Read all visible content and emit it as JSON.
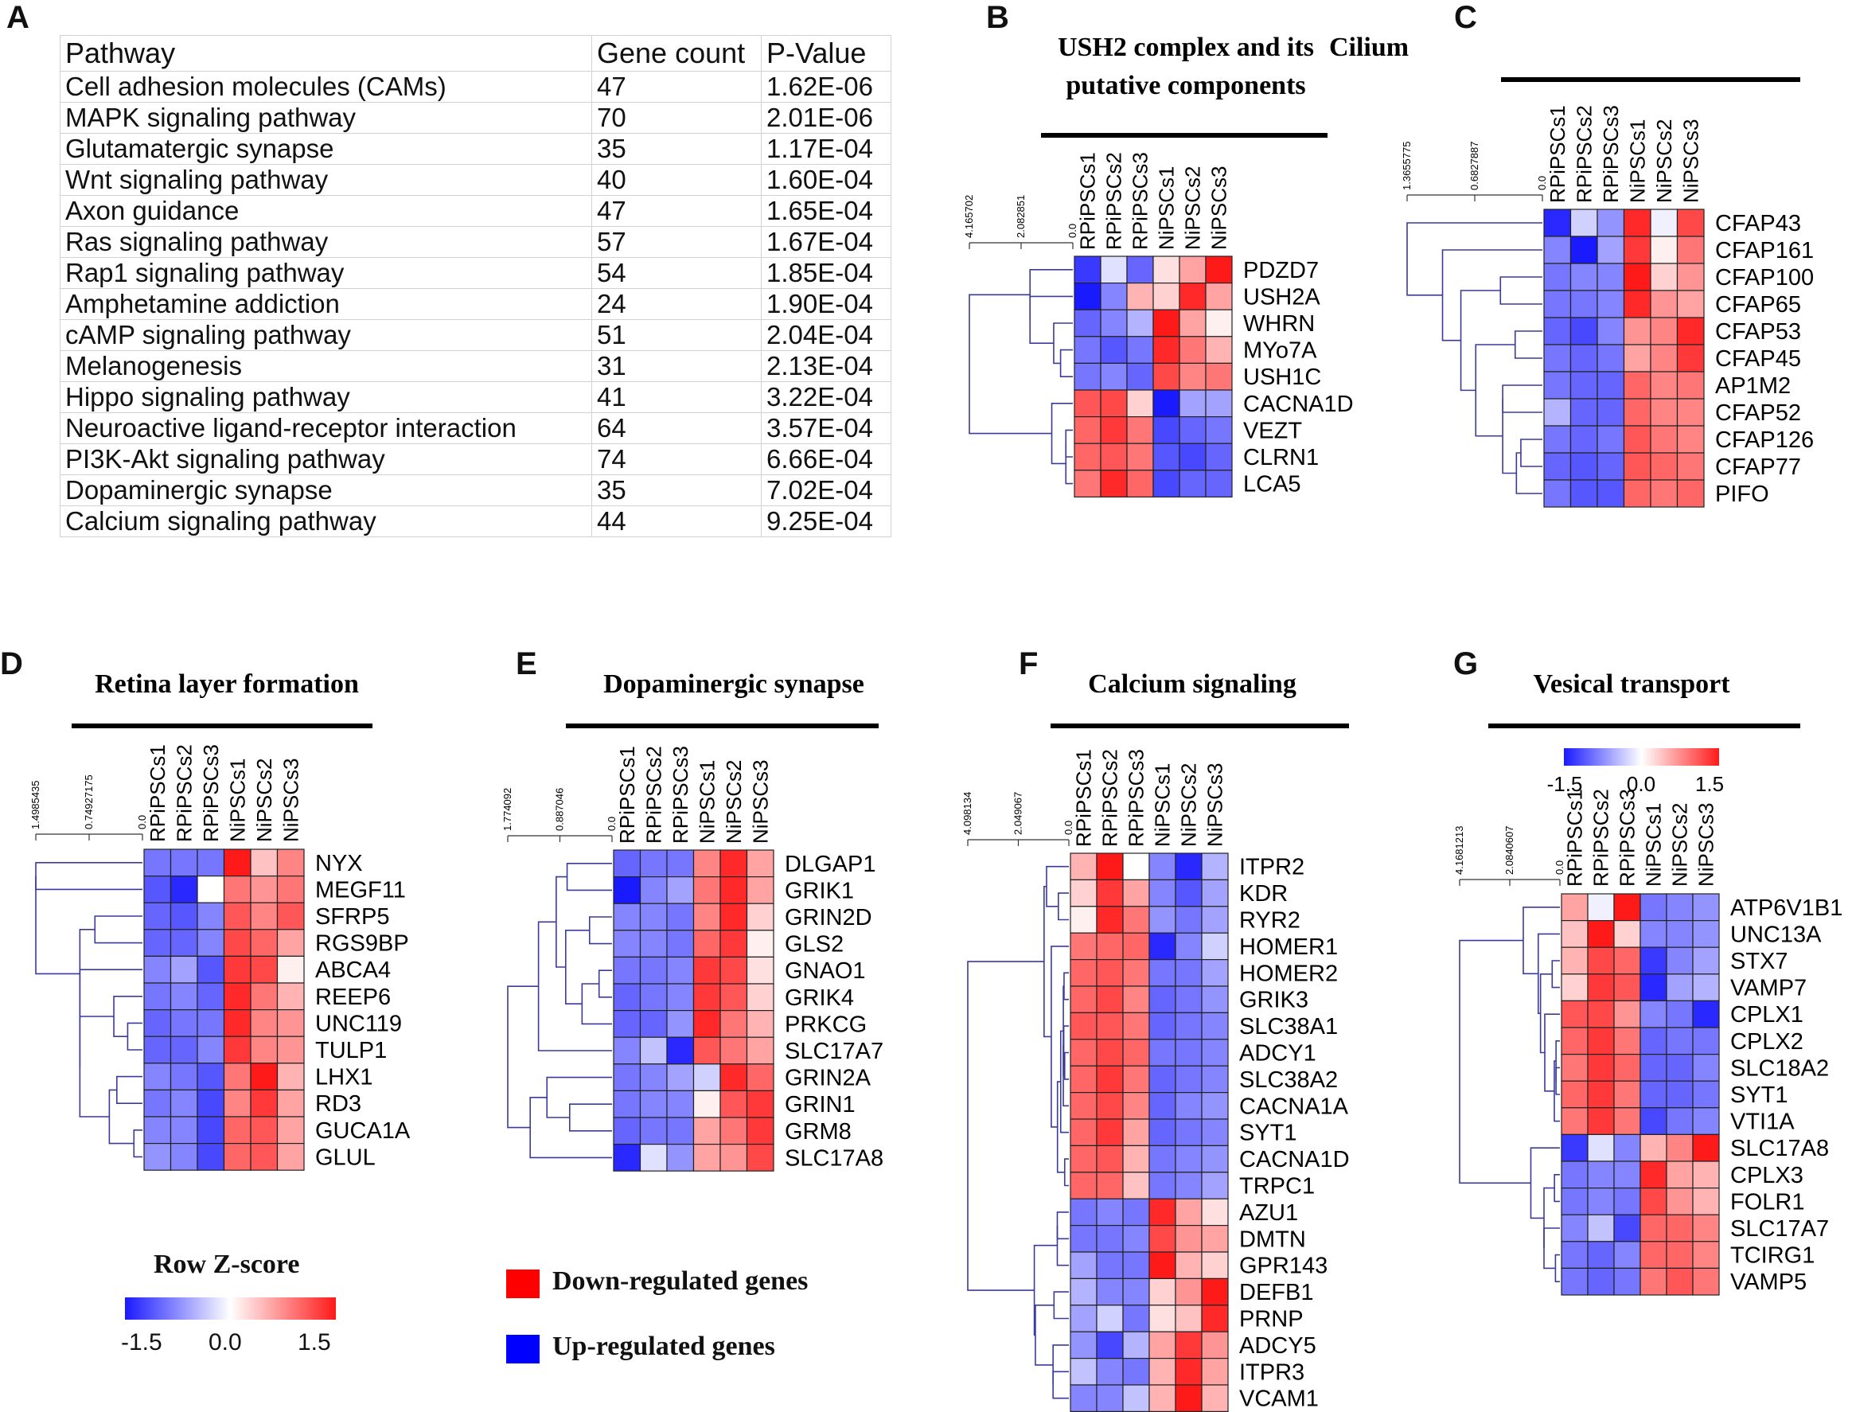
{
  "panel_letters": {
    "A": "A",
    "B": "B",
    "C": "C",
    "D": "D",
    "E": "E",
    "F": "F",
    "G": "G"
  },
  "table": {
    "headers": [
      "Pathway",
      "Gene count",
      "P-Value"
    ],
    "rows": [
      [
        "Cell adhesion molecules (CAMs)",
        "47",
        "1.62E-06"
      ],
      [
        "MAPK signaling pathway",
        "70",
        "2.01E-06"
      ],
      [
        "Glutamatergic synapse",
        "35",
        "1.17E-04"
      ],
      [
        "Wnt signaling pathway",
        "40",
        "1.60E-04"
      ],
      [
        "Axon guidance",
        "47",
        "1.65E-04"
      ],
      [
        "Ras signaling pathway",
        "57",
        "1.67E-04"
      ],
      [
        "Rap1 signaling pathway",
        "54",
        "1.85E-04"
      ],
      [
        "Amphetamine addiction",
        "24",
        "1.90E-04"
      ],
      [
        "cAMP signaling pathway",
        "51",
        "2.04E-04"
      ],
      [
        "Melanogenesis",
        "31",
        "2.13E-04"
      ],
      [
        "Hippo signaling pathway",
        "41",
        "3.22E-04"
      ],
      [
        "Neuroactive ligand-receptor interaction",
        "64",
        "3.57E-04"
      ],
      [
        "PI3K-Akt signaling pathway",
        "74",
        "6.66E-04"
      ],
      [
        "Dopaminergic synapse",
        "35",
        "7.02E-04"
      ],
      [
        "Calcium signaling pathway",
        "44",
        "9.25E-04"
      ]
    ]
  },
  "legend": {
    "zscore_title": "Row Z-score",
    "zscore_ticks": [
      "-1.5",
      "0.0",
      "1.5"
    ],
    "down_label": "Down-regulated genes",
    "up_label": "Up-regulated genes",
    "colors": {
      "low": "#1a1aff",
      "mid": "#ffffff",
      "high": "#ff1a1a",
      "down": "#ff0000",
      "up": "#0000ff"
    }
  },
  "chart_data": [
    {
      "type": "heatmap",
      "panel": "B",
      "title": [
        "USH2 complex and its",
        "putative components"
      ],
      "columns": [
        "RPiPSCs1",
        "RPiPSCs2",
        "RPiPSCs3",
        "NiPSCs1",
        "NiPSCs2",
        "NiPSCs3"
      ],
      "dendro_ticks": [
        "4.165702",
        "2.082851",
        "0.0"
      ],
      "rows": [
        "PDZD7",
        "USH2A",
        "WHRN",
        "MYo7A",
        "USH1C",
        "CACNA1D",
        "VEZT",
        "CLRN1",
        "LCA5"
      ],
      "values": [
        [
          -1.3,
          -0.2,
          -1.0,
          0.2,
          0.6,
          1.5
        ],
        [
          -1.5,
          -0.8,
          0.5,
          0.3,
          1.4,
          0.6
        ],
        [
          -1.0,
          -0.8,
          -0.5,
          1.5,
          0.6,
          0.1
        ],
        [
          -0.9,
          -1.1,
          -0.9,
          1.4,
          0.9,
          0.5
        ],
        [
          -0.9,
          -0.8,
          -1.0,
          1.2,
          0.8,
          0.9
        ],
        [
          1.1,
          1.2,
          0.3,
          -1.5,
          -0.6,
          -0.6
        ],
        [
          1.0,
          1.3,
          0.9,
          -1.2,
          -1.0,
          -0.9
        ],
        [
          1.0,
          1.1,
          0.9,
          -1.1,
          -1.2,
          -1.0
        ],
        [
          0.9,
          1.4,
          1.0,
          -1.2,
          -1.0,
          -1.0
        ]
      ],
      "zlim": [
        -1.5,
        1.5
      ]
    },
    {
      "type": "heatmap",
      "panel": "C",
      "title": [
        "Cilium"
      ],
      "columns": [
        "RPiPSCs1",
        "RPiPSCs2",
        "RPiPSCs3",
        "NiPSCs1",
        "NiPSCs2",
        "NiPSCs3"
      ],
      "dendro_ticks": [
        "1.3655775",
        "0.6827887",
        "0.0"
      ],
      "rows": [
        "CFAP43",
        "CFAP161",
        "CFAP100",
        "CFAP65",
        "CFAP53",
        "CFAP45",
        "AP1M2",
        "CFAP52",
        "CFAP126",
        "CFAP77",
        "PIFO"
      ],
      "values": [
        [
          -1.4,
          -0.3,
          -0.7,
          1.4,
          -0.1,
          1.2
        ],
        [
          -0.8,
          -1.5,
          -0.6,
          1.3,
          0.1,
          0.9
        ],
        [
          -0.9,
          -0.8,
          -0.8,
          1.5,
          0.3,
          0.7
        ],
        [
          -0.9,
          -0.9,
          -0.8,
          1.4,
          0.7,
          0.6
        ],
        [
          -1.0,
          -1.2,
          -0.8,
          0.7,
          0.8,
          1.4
        ],
        [
          -0.9,
          -1.0,
          -0.9,
          0.6,
          0.8,
          1.3
        ],
        [
          -0.9,
          -1.0,
          -1.0,
          1.0,
          0.8,
          0.9
        ],
        [
          -0.5,
          -1.0,
          -1.0,
          1.0,
          0.8,
          0.8
        ],
        [
          -0.9,
          -1.0,
          -0.9,
          1.1,
          0.9,
          0.8
        ],
        [
          -1.0,
          -1.1,
          -1.0,
          1.1,
          1.0,
          0.9
        ],
        [
          -0.9,
          -1.1,
          -1.1,
          1.0,
          0.9,
          1.0
        ]
      ],
      "zlim": [
        -1.5,
        1.5
      ]
    },
    {
      "type": "heatmap",
      "panel": "D",
      "title": [
        "Retina layer formation"
      ],
      "columns": [
        "RPiPSCs1",
        "RPiPSCs2",
        "RPiPSCs3",
        "NiPSCs1",
        "NiPSCs2",
        "NiPSCs3"
      ],
      "dendro_ticks": [
        "1.4985435",
        "0.74927175",
        "0.0"
      ],
      "rows": [
        "NYX",
        "MEGF11",
        "SFRP5",
        "RGS9BP",
        "ABCA4",
        "REEP6",
        "UNC119",
        "TULP1",
        "LHX1",
        "RD3",
        "GUCA1A",
        "GLUL"
      ],
      "values": [
        [
          -0.9,
          -0.9,
          -0.9,
          1.5,
          0.4,
          0.8
        ],
        [
          -1.1,
          -1.4,
          0.0,
          0.9,
          0.7,
          0.9
        ],
        [
          -1.0,
          -1.1,
          -0.8,
          1.1,
          0.8,
          1.1
        ],
        [
          -1.0,
          -1.0,
          -0.8,
          1.2,
          1.0,
          0.6
        ],
        [
          -0.8,
          -0.6,
          -1.1,
          1.3,
          1.2,
          0.1
        ],
        [
          -0.9,
          -0.8,
          -1.0,
          1.4,
          0.9,
          0.5
        ],
        [
          -1.0,
          -0.9,
          -0.9,
          1.4,
          0.8,
          0.7
        ],
        [
          -1.0,
          -1.0,
          -0.8,
          1.3,
          0.8,
          0.7
        ],
        [
          -0.8,
          -0.9,
          -1.1,
          0.9,
          1.5,
          0.5
        ],
        [
          -0.9,
          -0.8,
          -1.2,
          0.8,
          1.3,
          0.6
        ],
        [
          -0.8,
          -0.8,
          -1.2,
          1.0,
          1.1,
          0.6
        ],
        [
          -0.7,
          -0.8,
          -1.2,
          1.0,
          1.1,
          0.6
        ]
      ],
      "zlim": [
        -1.5,
        1.5
      ]
    },
    {
      "type": "heatmap",
      "panel": "E",
      "title": [
        "Dopaminergic synapse"
      ],
      "columns": [
        "RPiPSCs1",
        "RPiPSCs2",
        "RPiPSCs3",
        "NiPSCs1",
        "NiPSCs2",
        "NiPSCs3"
      ],
      "dendro_ticks": [
        "1.774092",
        "0.887046",
        "0.0"
      ],
      "rows": [
        "DLGAP1",
        "GRIK1",
        "GRIN2D",
        "GLS2",
        "GNAO1",
        "GRIK4",
        "PRKCG",
        "SLC17A7",
        "GRIN2A",
        "GRIN1",
        "GRM8",
        "SLC17A8"
      ],
      "values": [
        [
          -1.0,
          -0.9,
          -0.9,
          0.8,
          1.4,
          0.6
        ],
        [
          -1.5,
          -0.8,
          -0.6,
          0.9,
          1.4,
          0.6
        ],
        [
          -0.8,
          -0.8,
          -0.9,
          0.8,
          1.4,
          0.3
        ],
        [
          -0.8,
          -0.8,
          -0.9,
          1.0,
          1.3,
          0.1
        ],
        [
          -0.9,
          -0.9,
          -0.8,
          1.3,
          1.2,
          0.2
        ],
        [
          -1.0,
          -0.9,
          -0.8,
          1.3,
          1.1,
          0.3
        ],
        [
          -1.0,
          -1.0,
          -0.7,
          1.4,
          0.9,
          0.5
        ],
        [
          -0.8,
          -0.4,
          -1.4,
          1.1,
          0.9,
          0.6
        ],
        [
          -0.9,
          -0.8,
          -0.6,
          -0.3,
          1.4,
          1.0
        ],
        [
          -0.9,
          -0.8,
          -0.8,
          0.1,
          1.1,
          1.3
        ],
        [
          -1.0,
          -0.9,
          -0.9,
          0.6,
          0.9,
          1.3
        ],
        [
          -1.4,
          -0.2,
          -0.7,
          0.6,
          0.7,
          1.2
        ]
      ],
      "zlim": [
        -1.5,
        1.5
      ]
    },
    {
      "type": "heatmap",
      "panel": "F",
      "title": [
        "Calcium signaling"
      ],
      "columns": [
        "RPiPSCs1",
        "RPiPSCs2",
        "RPiPSCs3",
        "NiPSCs1",
        "NiPSCs2",
        "NiPSCs3"
      ],
      "dendro_ticks": [
        "4.098134",
        "2.049067",
        "0.0"
      ],
      "rows": [
        "ITPR2",
        "KDR",
        "RYR2",
        "HOMER1",
        "HOMER2",
        "GRIK3",
        "SLC38A1",
        "ADCY1",
        "SLC38A2",
        "CACNA1A",
        "SYT1",
        "CACNA1D",
        "TRPC1",
        "AZU1",
        "DMTN",
        "GPR143",
        "DEFB1",
        "PRNP",
        "ADCY5",
        "ITPR3",
        "VCAM1"
      ],
      "values": [
        [
          0.5,
          1.5,
          0.0,
          -0.8,
          -1.4,
          -0.5
        ],
        [
          0.3,
          1.3,
          0.6,
          -0.8,
          -1.1,
          -0.6
        ],
        [
          0.1,
          1.4,
          0.9,
          -0.7,
          -0.9,
          -0.6
        ],
        [
          0.9,
          1.0,
          1.0,
          -1.4,
          -0.8,
          -0.3
        ],
        [
          1.0,
          1.1,
          0.9,
          -0.9,
          -0.9,
          -0.6
        ],
        [
          1.0,
          1.2,
          0.8,
          -1.0,
          -0.9,
          -0.7
        ],
        [
          1.1,
          1.1,
          0.9,
          -1.0,
          -0.9,
          -0.8
        ],
        [
          1.0,
          1.2,
          1.0,
          -0.9,
          -0.9,
          -0.8
        ],
        [
          1.0,
          1.3,
          0.9,
          -1.0,
          -0.9,
          -0.8
        ],
        [
          1.0,
          1.2,
          0.8,
          -1.0,
          -0.8,
          -0.7
        ],
        [
          1.0,
          1.3,
          0.6,
          -1.0,
          -0.9,
          -0.8
        ],
        [
          1.0,
          1.1,
          0.5,
          -0.9,
          -0.8,
          -0.7
        ],
        [
          1.0,
          1.0,
          0.4,
          -0.9,
          -0.8,
          -0.6
        ],
        [
          -0.9,
          -0.8,
          -0.9,
          1.4,
          0.6,
          0.2
        ],
        [
          -0.9,
          -0.9,
          -0.8,
          1.2,
          0.7,
          0.6
        ],
        [
          -0.6,
          -0.9,
          -0.9,
          1.5,
          0.5,
          0.3
        ],
        [
          -0.5,
          -0.8,
          -0.8,
          0.3,
          0.7,
          1.5
        ],
        [
          -0.6,
          -0.3,
          -0.9,
          0.2,
          0.4,
          1.4
        ],
        [
          -0.7,
          -1.2,
          -0.5,
          0.6,
          1.3,
          0.7
        ],
        [
          -0.4,
          -0.8,
          -0.9,
          0.5,
          1.4,
          0.6
        ],
        [
          -0.8,
          -0.8,
          -0.4,
          0.5,
          1.5,
          0.5
        ]
      ],
      "zlim": [
        -1.5,
        1.5
      ]
    },
    {
      "type": "heatmap",
      "panel": "G",
      "title": [
        "Vesical transport"
      ],
      "columns": [
        "RPiPSCs1",
        "RPiPSCs2",
        "RPiPSCs3",
        "NiPSCs1",
        "NiPSCs2",
        "NiPSCs3"
      ],
      "dendro_ticks": [
        "4.1681213",
        "2.0840607",
        "0.0"
      ],
      "rows": [
        "ATP6V1B1",
        "UNC13A",
        "STX7",
        "VAMP7",
        "CPLX1",
        "CPLX2",
        "SLC18A2",
        "SYT1",
        "VTI1A",
        "SLC17A8",
        "CPLX3",
        "FOLR1",
        "SLC17A7",
        "TCIRG1",
        "VAMP5"
      ],
      "values": [
        [
          0.6,
          -0.1,
          1.5,
          -0.9,
          -0.8,
          -0.7
        ],
        [
          0.4,
          1.5,
          0.3,
          -0.8,
          -0.8,
          -0.7
        ],
        [
          0.5,
          1.2,
          1.0,
          -1.3,
          -0.8,
          -0.6
        ],
        [
          0.3,
          1.3,
          1.1,
          -1.4,
          -0.6,
          -0.5
        ],
        [
          1.1,
          1.2,
          0.7,
          -0.8,
          -0.9,
          -1.4
        ],
        [
          1.0,
          1.3,
          0.9,
          -1.0,
          -0.9,
          -0.9
        ],
        [
          0.9,
          1.3,
          1.0,
          -1.0,
          -1.0,
          -0.8
        ],
        [
          1.0,
          1.3,
          0.9,
          -1.0,
          -1.0,
          -0.9
        ],
        [
          0.9,
          1.3,
          0.9,
          -1.2,
          -0.9,
          -0.8
        ],
        [
          -1.3,
          -0.2,
          -0.8,
          0.5,
          0.8,
          1.5
        ],
        [
          -0.9,
          -0.8,
          -0.8,
          1.4,
          0.6,
          0.5
        ],
        [
          -0.9,
          -0.8,
          -0.9,
          1.2,
          0.7,
          0.5
        ],
        [
          -0.8,
          -0.4,
          -1.2,
          1.0,
          1.0,
          0.8
        ],
        [
          -0.9,
          -1.0,
          -0.8,
          1.0,
          1.0,
          0.8
        ],
        [
          -0.9,
          -1.0,
          -0.9,
          0.9,
          1.1,
          0.9
        ]
      ],
      "zlim": [
        -1.5,
        1.5
      ],
      "colorbar_ticks": [
        "-1.5",
        "0.0",
        "1.5"
      ]
    }
  ]
}
